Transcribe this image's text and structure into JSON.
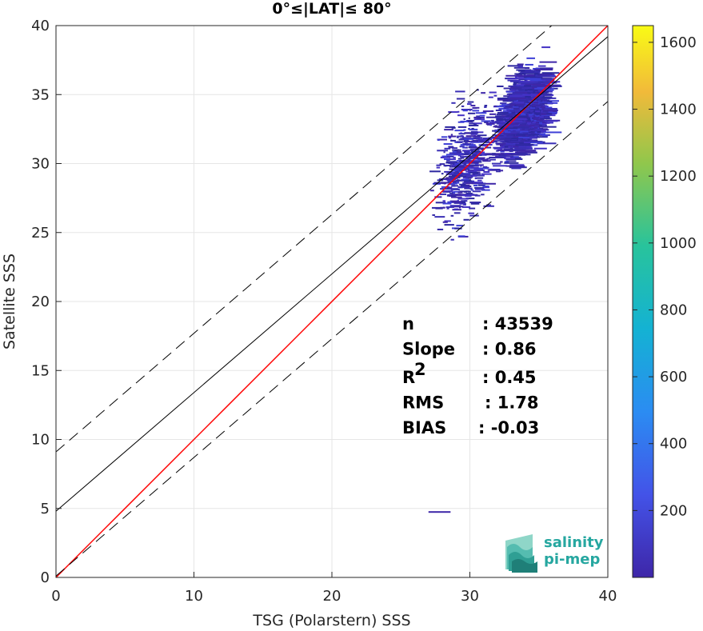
{
  "chart_data": {
    "type": "heatmap",
    "title": "0°≤|LAT|≤ 80°",
    "xlabel": "TSG (Polarstern) SSS",
    "ylabel": "Satellite SSS",
    "xlim": [
      0,
      40
    ],
    "ylim": [
      0,
      40
    ],
    "xticks": [
      0,
      10,
      20,
      30,
      40
    ],
    "yticks": [
      0,
      5,
      10,
      15,
      20,
      25,
      30,
      35,
      40
    ],
    "grid": true,
    "colorbar": {
      "min": 0,
      "max": 1650,
      "ticks": [
        200,
        400,
        600,
        800,
        1000,
        1200,
        1400,
        1600
      ]
    },
    "lines": [
      {
        "name": "1:1",
        "color": "#ff0000",
        "style": "solid",
        "intercept": 0,
        "slope": 1
      },
      {
        "name": "fit",
        "color": "#000000",
        "style": "solid",
        "intercept": 4.8,
        "slope": 0.86
      },
      {
        "name": "fit-upper",
        "color": "#000000",
        "style": "dashed",
        "intercept": 9.1,
        "slope": 0.86
      },
      {
        "name": "fit-lower",
        "color": "#000000",
        "style": "dashed",
        "intercept": 0.1,
        "slope": 0.86
      }
    ],
    "stats": [
      {
        "label": "n",
        "sup": "",
        "value": ": 43539"
      },
      {
        "label": "Slope",
        "sup": "",
        "value": ": 0.86"
      },
      {
        "label": "R",
        "sup": "2",
        "value": ": 0.45"
      },
      {
        "label": "RMS",
        "sup": "",
        "value": ": 1.78"
      },
      {
        "label": "BIAS",
        "sup": "",
        "value": ": -0.03"
      }
    ],
    "density_x_range": [
      25.5,
      35.5
    ],
    "density_y_range": [
      4.7,
      38.5
    ]
  },
  "logo": {
    "line1": "salinity",
    "line2": "pi-mep"
  },
  "colors": {
    "low": "#3e26a8",
    "high": "#f9fb15",
    "onetoone": "#ff0000"
  }
}
